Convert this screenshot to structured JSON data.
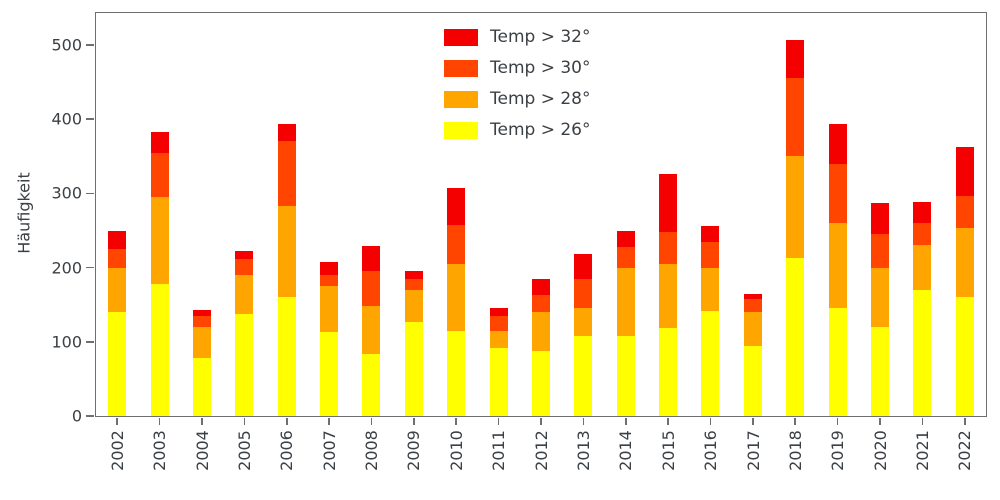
{
  "chart_data": {
    "type": "bar",
    "stacked": true,
    "title": "",
    "xlabel": "",
    "ylabel": "Häufigkeit",
    "ylim": [
      0,
      543
    ],
    "yticks": [
      0,
      100,
      200,
      300,
      400,
      500
    ],
    "grid": false,
    "legend_position": "upper-center-inside",
    "categories": [
      "2002",
      "2003",
      "2004",
      "2005",
      "2006",
      "2007",
      "2008",
      "2009",
      "2010",
      "2011",
      "2012",
      "2013",
      "2014",
      "2015",
      "2016",
      "2017",
      "2018",
      "2019",
      "2020",
      "2021",
      "2022"
    ],
    "series": [
      {
        "name": "Temp > 32°",
        "color": "#f50000",
        "values": [
          25,
          28,
          8,
          10,
          24,
          18,
          34,
          11,
          49,
          10,
          21,
          34,
          21,
          78,
          21,
          7,
          52,
          54,
          42,
          29,
          66
        ]
      },
      {
        "name": "Temp > 30°",
        "color": "#ff4500",
        "values": [
          25,
          60,
          15,
          22,
          87,
          15,
          47,
          15,
          53,
          20,
          23,
          40,
          28,
          43,
          35,
          18,
          105,
          80,
          45,
          30,
          44
        ]
      },
      {
        "name": "Temp > 28°",
        "color": "#ffa500",
        "values": [
          60,
          117,
          42,
          52,
          123,
          62,
          65,
          43,
          91,
          24,
          52,
          37,
          92,
          87,
          59,
          45,
          137,
          114,
          80,
          60,
          93
        ]
      },
      {
        "name": "Temp > 26°",
        "color": "#ffff00",
        "values": [
          140,
          178,
          78,
          138,
          160,
          113,
          83,
          127,
          114,
          91,
          88,
          108,
          108,
          118,
          141,
          95,
          213,
          146,
          120,
          170,
          160
        ]
      }
    ],
    "totals": [
      250,
      383,
      143,
      222,
      394,
      208,
      229,
      196,
      307,
      145,
      184,
      219,
      249,
      326,
      256,
      165,
      507,
      394,
      287,
      289,
      363
    ]
  }
}
